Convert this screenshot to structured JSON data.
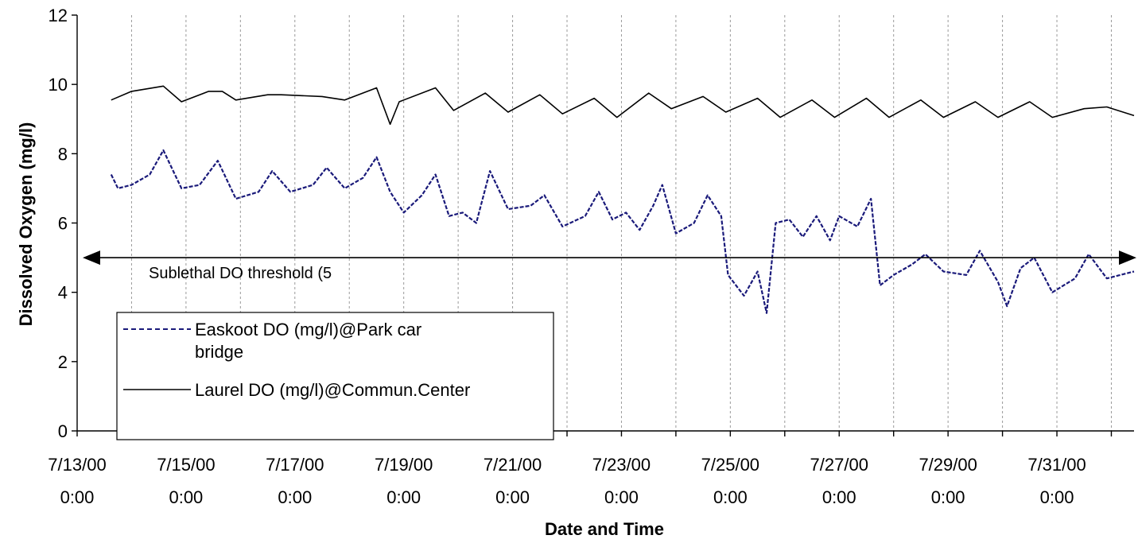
{
  "chart_data": {
    "type": "line",
    "title": "",
    "xlabel": "Date and Time",
    "ylabel": "Dissolved Oxygen (mg/l)",
    "xlim": [
      "7/13/00 0:00",
      "8/1/00 10:00"
    ],
    "ylim": [
      0,
      12
    ],
    "yticks": [
      0,
      2,
      4,
      6,
      8,
      10,
      12
    ],
    "xticks": [
      {
        "date": "7/13/00",
        "time": "0:00",
        "at": "7/13/00 0:00"
      },
      {
        "date": "7/15/00",
        "time": "0:00",
        "at": "7/15/00 0:00"
      },
      {
        "date": "7/17/00",
        "time": "0:00",
        "at": "7/17/00 0:00"
      },
      {
        "date": "7/19/00",
        "time": "0:00",
        "at": "7/19/00 0:00"
      },
      {
        "date": "7/21/00",
        "time": "0:00",
        "at": "7/21/00 0:00"
      },
      {
        "date": "7/23/00",
        "time": "0:00",
        "at": "7/23/00 0:00"
      },
      {
        "date": "7/25/00",
        "time": "0:00",
        "at": "7/25/00 0:00"
      },
      {
        "date": "7/27/00",
        "time": "0:00",
        "at": "7/27/00 0:00"
      },
      {
        "date": "7/29/00",
        "time": "0:00",
        "at": "7/29/00 0:00"
      },
      {
        "date": "7/31/00",
        "time": "0:00",
        "at": "7/31/00 0:00"
      }
    ],
    "grid": "vertical-dashed",
    "legend_position": "bottom-left",
    "annotation": {
      "text": "Sublethal DO threshold (5",
      "y": 5
    },
    "series": [
      {
        "name": "Easkoot DO (mg/l)@Park car bridge",
        "color": "#1a1a7a",
        "style": "dashed",
        "points": [
          [
            "7/13/00 15:00",
            7.4
          ],
          [
            "7/13/00 18:00",
            7.0
          ],
          [
            "7/14/00 0:00",
            7.1
          ],
          [
            "7/14/00 8:00",
            7.4
          ],
          [
            "7/14/00 14:00",
            8.1
          ],
          [
            "7/14/00 22:00",
            7.0
          ],
          [
            "7/15/00 6:00",
            7.1
          ],
          [
            "7/15/00 14:00",
            7.8
          ],
          [
            "7/15/00 22:00",
            6.7
          ],
          [
            "7/16/00 8:00",
            6.9
          ],
          [
            "7/16/00 14:00",
            7.5
          ],
          [
            "7/16/00 22:00",
            6.9
          ],
          [
            "7/17/00 8:00",
            7.1
          ],
          [
            "7/17/00 14:00",
            7.6
          ],
          [
            "7/17/00 22:00",
            7.0
          ],
          [
            "7/18/00 6:00",
            7.3
          ],
          [
            "7/18/00 12:00",
            7.9
          ],
          [
            "7/18/00 18:00",
            6.9
          ],
          [
            "7/19/00 0:00",
            6.3
          ],
          [
            "7/19/00 8:00",
            6.8
          ],
          [
            "7/19/00 14:00",
            7.4
          ],
          [
            "7/19/00 20:00",
            6.2
          ],
          [
            "7/20/00 2:00",
            6.3
          ],
          [
            "7/20/00 8:00",
            6.0
          ],
          [
            "7/20/00 14:00",
            7.5
          ],
          [
            "7/20/00 22:00",
            6.4
          ],
          [
            "7/21/00 8:00",
            6.5
          ],
          [
            "7/21/00 14:00",
            6.8
          ],
          [
            "7/21/00 22:00",
            5.9
          ],
          [
            "7/22/00 8:00",
            6.2
          ],
          [
            "7/22/00 14:00",
            6.9
          ],
          [
            "7/22/00 20:00",
            6.1
          ],
          [
            "7/23/00 2:00",
            6.3
          ],
          [
            "7/23/00 8:00",
            5.8
          ],
          [
            "7/23/00 14:00",
            6.5
          ],
          [
            "7/23/00 18:00",
            7.1
          ],
          [
            "7/24/00 0:00",
            5.7
          ],
          [
            "7/24/00 8:00",
            6.0
          ],
          [
            "7/24/00 14:00",
            6.8
          ],
          [
            "7/24/00 20:00",
            6.2
          ],
          [
            "7/24/00 23:00",
            4.5
          ],
          [
            "7/25/00 6:00",
            3.9
          ],
          [
            "7/25/00 12:00",
            4.6
          ],
          [
            "7/25/00 16:00",
            3.4
          ],
          [
            "7/25/00 20:00",
            6.0
          ],
          [
            "7/26/00 2:00",
            6.1
          ],
          [
            "7/26/00 8:00",
            5.6
          ],
          [
            "7/26/00 14:00",
            6.2
          ],
          [
            "7/26/00 20:00",
            5.5
          ],
          [
            "7/27/00 0:00",
            6.2
          ],
          [
            "7/27/00 8:00",
            5.9
          ],
          [
            "7/27/00 14:00",
            6.7
          ],
          [
            "7/27/00 18:00",
            4.2
          ],
          [
            "7/28/00 0:00",
            4.5
          ],
          [
            "7/28/00 8:00",
            4.8
          ],
          [
            "7/28/00 14:00",
            5.1
          ],
          [
            "7/28/00 22:00",
            4.6
          ],
          [
            "7/29/00 8:00",
            4.5
          ],
          [
            "7/29/00 14:00",
            5.2
          ],
          [
            "7/29/00 22:00",
            4.3
          ],
          [
            "7/30/00 2:00",
            3.6
          ],
          [
            "7/30/00 8:00",
            4.7
          ],
          [
            "7/30/00 14:00",
            5.0
          ],
          [
            "7/30/00 22:00",
            4.0
          ],
          [
            "7/31/00 8:00",
            4.4
          ],
          [
            "7/31/00 14:00",
            5.1
          ],
          [
            "7/31/00 22:00",
            4.4
          ],
          [
            "8/1/00 10:00",
            4.6
          ]
        ]
      },
      {
        "name": "Laurel DO (mg/l)@Commun.Center",
        "color": "#000000",
        "style": "solid",
        "points": [
          [
            "7/13/00 15:00",
            9.55
          ],
          [
            "7/14/00 0:00",
            9.8
          ],
          [
            "7/14/00 14:00",
            9.95
          ],
          [
            "7/14/00 22:00",
            9.5
          ],
          [
            "7/15/00 10:00",
            9.8
          ],
          [
            "7/15/00 16:00",
            9.8
          ],
          [
            "7/15/00 22:00",
            9.55
          ],
          [
            "7/16/00 12:00",
            9.7
          ],
          [
            "7/16/00 18:00",
            9.7
          ],
          [
            "7/17/00 12:00",
            9.65
          ],
          [
            "7/17/00 22:00",
            9.55
          ],
          [
            "7/18/00 12:00",
            9.9
          ],
          [
            "7/18/00 18:00",
            8.85
          ],
          [
            "7/18/00 22:00",
            9.5
          ],
          [
            "7/19/00 14:00",
            9.9
          ],
          [
            "7/19/00 22:00",
            9.25
          ],
          [
            "7/20/00 12:00",
            9.75
          ],
          [
            "7/20/00 22:00",
            9.2
          ],
          [
            "7/21/00 12:00",
            9.7
          ],
          [
            "7/21/00 22:00",
            9.15
          ],
          [
            "7/22/00 12:00",
            9.6
          ],
          [
            "7/22/00 22:00",
            9.05
          ],
          [
            "7/23/00 12:00",
            9.75
          ],
          [
            "7/23/00 22:00",
            9.3
          ],
          [
            "7/24/00 12:00",
            9.65
          ],
          [
            "7/24/00 22:00",
            9.2
          ],
          [
            "7/25/00 12:00",
            9.6
          ],
          [
            "7/25/00 22:00",
            9.05
          ],
          [
            "7/26/00 12:00",
            9.55
          ],
          [
            "7/26/00 22:00",
            9.05
          ],
          [
            "7/27/00 12:00",
            9.6
          ],
          [
            "7/27/00 22:00",
            9.05
          ],
          [
            "7/28/00 12:00",
            9.55
          ],
          [
            "7/28/00 22:00",
            9.05
          ],
          [
            "7/29/00 12:00",
            9.5
          ],
          [
            "7/29/00 22:00",
            9.05
          ],
          [
            "7/30/00 12:00",
            9.5
          ],
          [
            "7/30/00 22:00",
            9.05
          ],
          [
            "7/31/00 12:00",
            9.3
          ],
          [
            "7/31/00 22:00",
            9.35
          ],
          [
            "8/1/00 10:00",
            9.1
          ]
        ]
      }
    ]
  }
}
